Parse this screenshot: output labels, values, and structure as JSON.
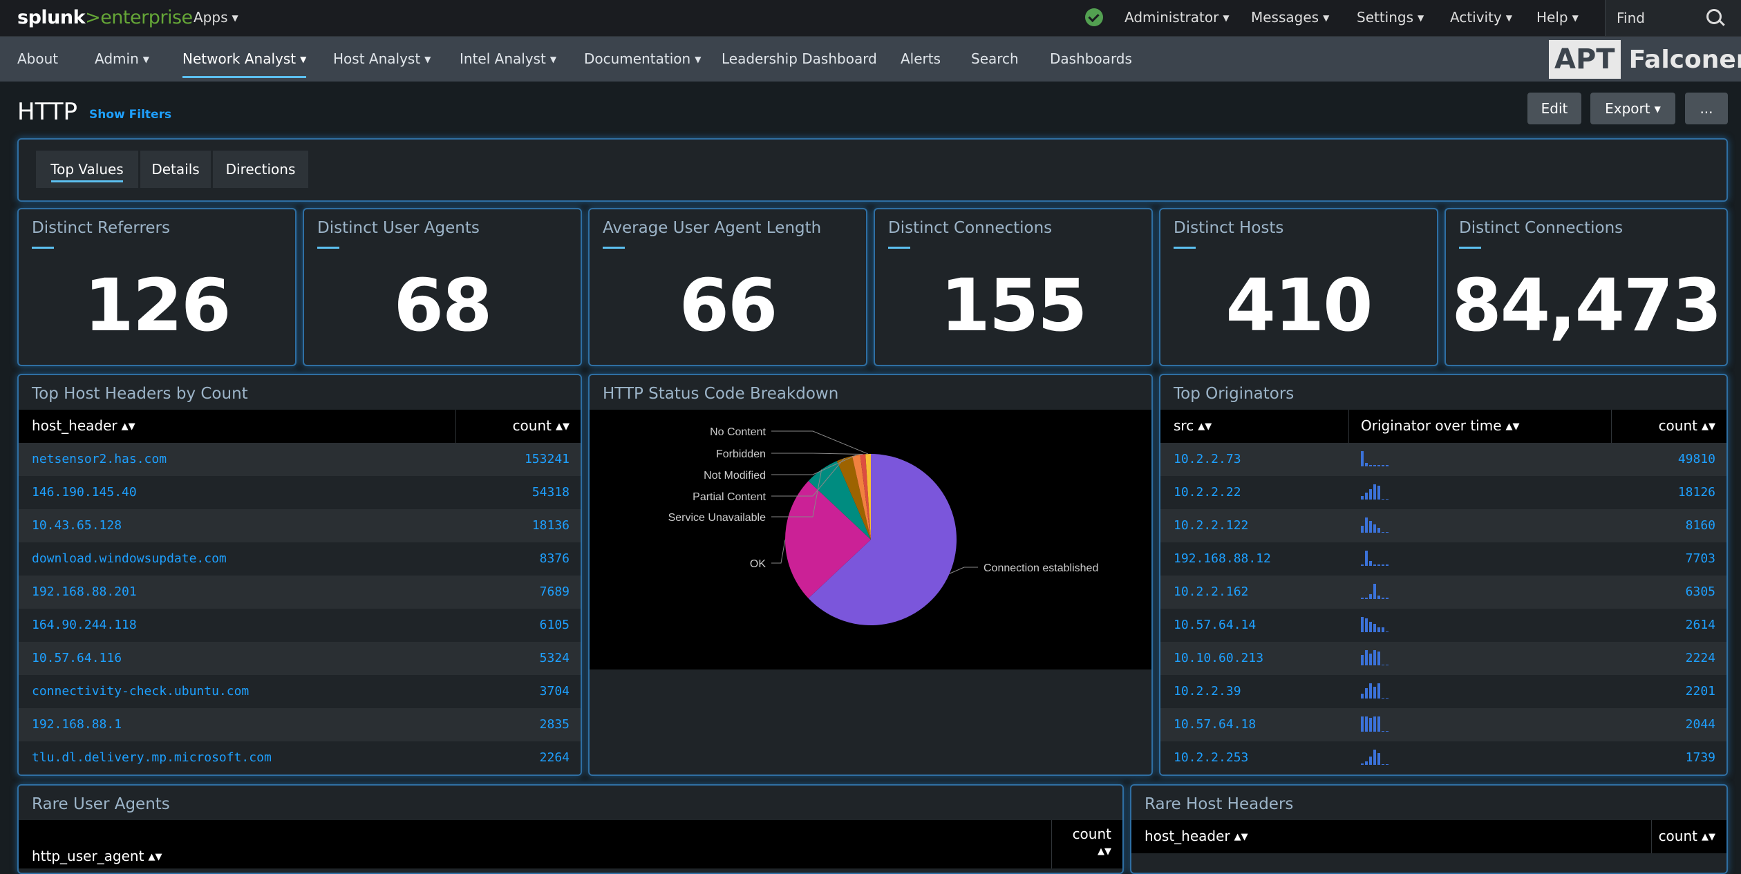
{
  "topbar": {
    "logo_splunk": "splunk",
    "logo_gt": ">",
    "logo_enterprise": "enterprise",
    "apps": "Apps",
    "items": [
      "Administrator",
      "Messages",
      "Settings",
      "Activity",
      "Help"
    ],
    "find": "Find",
    "status_color": "#53a051"
  },
  "appnav": {
    "items": [
      "About",
      "Admin",
      "Network Analyst",
      "Host Analyst",
      "Intel Analyst",
      "Documentation",
      "Leadership Dashboard",
      "Alerts",
      "Search",
      "Dashboards"
    ],
    "active": "Network Analyst",
    "logo_apt": "APT",
    "logo_falconer": "Falconer"
  },
  "page": {
    "title": "HTTP",
    "show_filters": "Show Filters",
    "edit": "Edit",
    "export": "Export",
    "more": "..."
  },
  "tabs": [
    "Top Values",
    "Details",
    "Directions"
  ],
  "singles": [
    {
      "title": "Distinct Referrers",
      "value": "126"
    },
    {
      "title": "Distinct User Agents",
      "value": "68"
    },
    {
      "title": "Average User Agent Length",
      "value": "66"
    },
    {
      "title": "Distinct Connections",
      "value": "155"
    },
    {
      "title": "Distinct Hosts",
      "value": "410"
    },
    {
      "title": "Distinct Connections",
      "value": "84,473"
    }
  ],
  "top_hosts": {
    "title": "Top Host Headers by Count",
    "columns": [
      "host_header",
      "count"
    ],
    "rows": [
      [
        "netsensor2.has.com",
        "153241"
      ],
      [
        "146.190.145.40",
        "54318"
      ],
      [
        "10.43.65.128",
        "18136"
      ],
      [
        "download.windowsupdate.com",
        "8376"
      ],
      [
        "192.168.88.201",
        "7689"
      ],
      [
        "164.90.244.118",
        "6105"
      ],
      [
        "10.57.64.116",
        "5324"
      ],
      [
        "connectivity-check.ubuntu.com",
        "3704"
      ],
      [
        "192.168.88.1",
        "2835"
      ],
      [
        "tlu.dl.delivery.mp.microsoft.com",
        "2264"
      ]
    ]
  },
  "status_panel": {
    "title": "HTTP Status Code Breakdown"
  },
  "chart_data": {
    "type": "pie",
    "title": "HTTP Status Code Breakdown",
    "slices": [
      {
        "label": "Connection established",
        "value": 63,
        "color": "#7b56db"
      },
      {
        "label": "OK",
        "value": 24,
        "color": "#cb2196"
      },
      {
        "label": "Service Unavailable",
        "value": 6.5,
        "color": "#008c80"
      },
      {
        "label": "Partial Content",
        "value": 3,
        "color": "#9d6300"
      },
      {
        "label": "Not Modified",
        "value": 1.5,
        "color": "#f1813f"
      },
      {
        "label": "Forbidden",
        "value": 1,
        "color": "#dc4e41"
      },
      {
        "label": "No Content",
        "value": 1,
        "color": "#f8be34"
      }
    ]
  },
  "top_orig": {
    "title": "Top Originators",
    "columns": [
      "src",
      "Originator over time",
      "count"
    ],
    "rows": [
      {
        "src": "10.2.2.73",
        "count": "49810",
        "spark": [
          9,
          2,
          1,
          1,
          1,
          1,
          1
        ]
      },
      {
        "src": "10.2.2.22",
        "count": "18126",
        "spark": [
          2,
          4,
          6,
          9,
          8,
          0,
          0
        ]
      },
      {
        "src": "10.2.2.122",
        "count": "8160",
        "spark": [
          4,
          9,
          7,
          5,
          3,
          0,
          0
        ]
      },
      {
        "src": "192.168.88.12",
        "count": "7703",
        "spark": [
          1,
          9,
          3,
          1,
          1,
          1,
          1
        ]
      },
      {
        "src": "10.2.2.162",
        "count": "6305",
        "spark": [
          1,
          1,
          3,
          9,
          2,
          1,
          1
        ]
      },
      {
        "src": "10.57.64.14",
        "count": "2614",
        "spark": [
          9,
          8,
          6,
          5,
          3,
          3,
          0
        ]
      },
      {
        "src": "10.10.60.213",
        "count": "2224",
        "spark": [
          6,
          9,
          7,
          9,
          8,
          0,
          0
        ]
      },
      {
        "src": "10.2.2.39",
        "count": "2201",
        "spark": [
          3,
          6,
          9,
          7,
          9,
          0,
          0
        ]
      },
      {
        "src": "10.57.64.18",
        "count": "2044",
        "spark": [
          9,
          9,
          8,
          9,
          9,
          0,
          0
        ]
      },
      {
        "src": "10.2.2.253",
        "count": "1739",
        "spark": [
          1,
          2,
          5,
          9,
          7,
          0,
          0
        ]
      }
    ]
  },
  "rare_ua": {
    "title": "Rare User Agents",
    "col1": "http_user_agent",
    "col2": "count"
  },
  "rare_hosts": {
    "title": "Rare Host Headers",
    "col1": "host_header",
    "col2": "count"
  }
}
